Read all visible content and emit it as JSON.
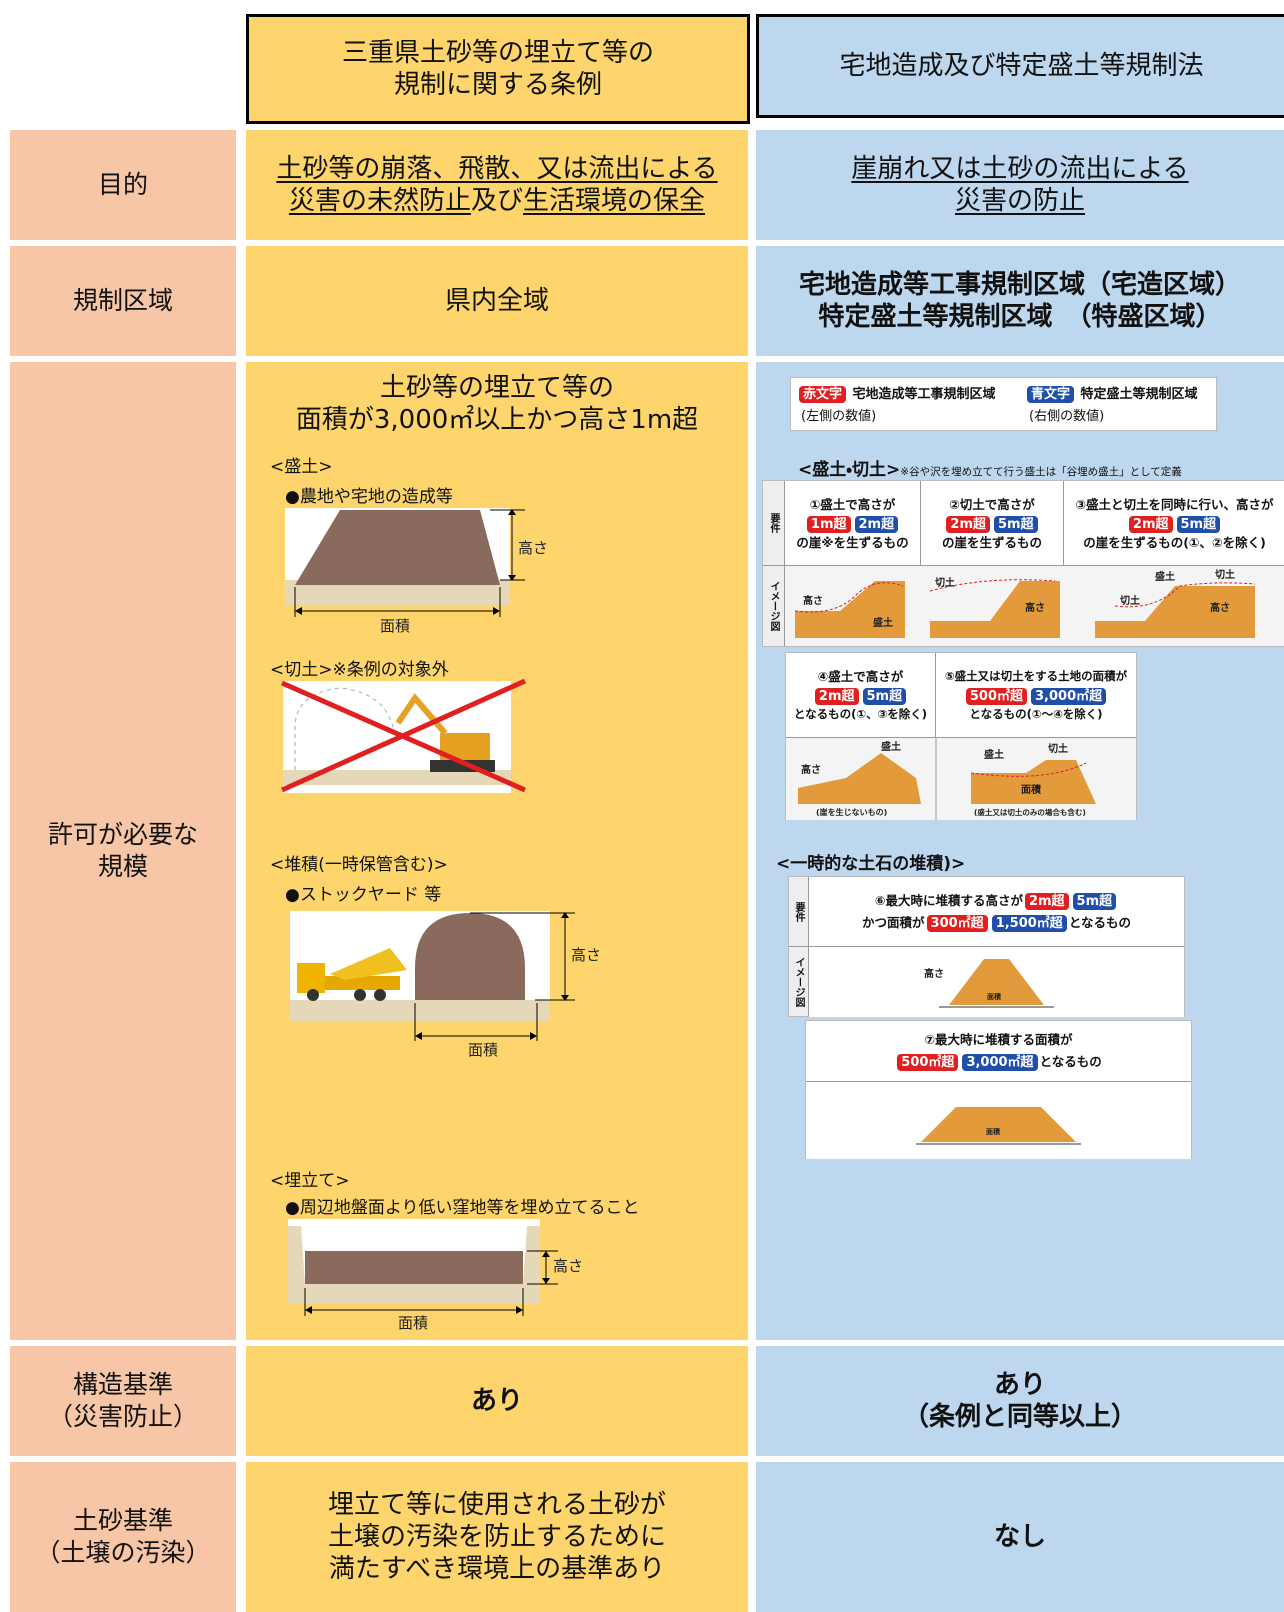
{
  "header": {
    "ordinance": [
      "三重県土砂等の埋立て等の",
      "規制に関する条例"
    ],
    "law": "宅地造成及び特定盛土等規制法"
  },
  "rows": {
    "purpose": {
      "label": "目的",
      "ordinance": {
        "line1": "土砂等の崩落、飛散、又は流出による",
        "line2": [
          "災害の未然防止",
          "及び",
          "生活環境の保全"
        ]
      },
      "law": [
        "崖崩れ又は土砂の流出による",
        "災害の防止"
      ]
    },
    "area": {
      "label": "規制区域",
      "ordinance": "県内全域",
      "law": [
        "宅地造成等工事規制区域（宅造区域）",
        "特定盛土等規制区域　（特盛区域）"
      ]
    },
    "scale": {
      "label": [
        "許可が必要な",
        "規模"
      ],
      "ordinance": {
        "heading": [
          "土砂等の埋立て等の",
          "面積が3,000㎡以上かつ高さ1m超"
        ],
        "fill": {
          "title": "<盛土>",
          "bullet": "●農地や宅地の造成等",
          "height": "高さ",
          "area": "面積"
        },
        "cut": {
          "title": "<切土>※条例の対象外"
        },
        "pile": {
          "title": "<堆積(一時保管含む)>",
          "bullet": "●ストックヤード 等",
          "height": "高さ",
          "area": "面積"
        },
        "landfill": {
          "title": "<埋立て>",
          "bullet": "●周辺地盤面より低い窪地等を埋め立てること",
          "height": "高さ",
          "area": "面積"
        }
      },
      "law": {
        "legend": {
          "red": {
            "tag": "赤文字",
            "text": "宅地造成等工事規制区域",
            "note": "(左側の数値)"
          },
          "blue": {
            "tag": "青文字",
            "text": "特定盛土等規制区域",
            "note": "(右側の数値)"
          }
        },
        "cutfill": {
          "title": "<盛土・切土>",
          "note": "※谷や沢を埋め立てて行う盛土は「谷埋め盛土」として定義",
          "requirement": "要件",
          "image": "イメージ図",
          "items": [
            {
              "text": "①盛土で高さが",
              "red": "1m超",
              "blue": "2m超",
              "suffix": "の崖※を生ずるもの",
              "labels": [
                "高さ",
                "盛土"
              ]
            },
            {
              "text": "②切土で高さが",
              "red": "2m超",
              "blue": "5m超",
              "suffix": "の崖を生ずるもの",
              "labels": [
                "切土",
                "高さ"
              ]
            },
            {
              "text": "③盛土と切土を同時に行い、高さが",
              "red": "2m超",
              "blue": "5m超",
              "suffix": "の崖を生ずるもの(①、②を除く)",
              "labels": [
                "盛土",
                "切土",
                "切土",
                "高さ"
              ]
            },
            {
              "text": "④盛土で高さが",
              "red": "2m超",
              "blue": "5m超",
              "suffix": "となるもの(①、③を除く)",
              "labels": [
                "盛土",
                "高さ",
                "(崖を生じないもの)"
              ]
            },
            {
              "text": "⑤盛土又は切土をする土地の面積が",
              "red": "500㎡超",
              "blue": "3,000㎡超",
              "suffix": "となるもの(①～④を除く)",
              "labels": [
                "盛土",
                "切土",
                "面積",
                "(盛土又は切土のみの場合も含む)"
              ]
            }
          ]
        },
        "temporary": {
          "title": "<一時的な土石の堆積)>",
          "requirement": "要件",
          "image": "イメージ図",
          "items": [
            {
              "text": "⑥最大時に堆積する高さが",
              "red": "2m超",
              "blue": "5m超",
              "text2": "かつ面積が",
              "red2": "300㎡超",
              "blue2": "1,500㎡超",
              "suffix": "となるもの",
              "labels": [
                "高さ",
                "面積"
              ]
            },
            {
              "text": "⑦最大時に堆積する面積が",
              "red": "500㎡超",
              "blue": "3,000㎡超",
              "suffix": "となるもの",
              "labels": [
                "面積"
              ]
            }
          ]
        }
      }
    },
    "structure": {
      "label": [
        "構造基準",
        "（災害防止）"
      ],
      "ordinance": "あり",
      "law": [
        "あり",
        "（条例と同等以上）"
      ]
    },
    "soil": {
      "label": [
        "土砂基準",
        "（土壌の汚染）"
      ],
      "ordinance": [
        "埋立て等に使用される土砂が",
        "土壌の汚染を防止するために",
        "満たすべき環境上の基準あり"
      ],
      "law": "なし"
    }
  }
}
